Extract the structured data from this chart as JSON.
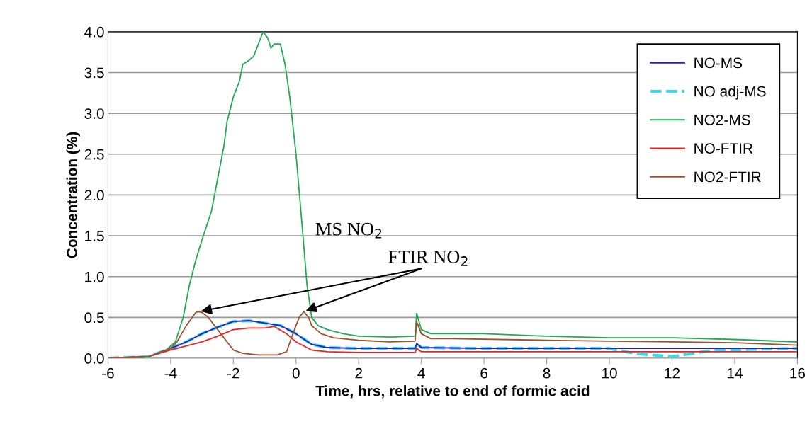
{
  "chart_data": {
    "type": "line",
    "xlabel": "Time, hrs, relative to end of formic acid",
    "ylabel": "Concentration (%)",
    "xlim": [
      -6,
      16
    ],
    "xticks": [
      -6,
      -4,
      -2,
      0,
      2,
      4,
      6,
      8,
      10,
      12,
      14,
      16
    ],
    "ylim": [
      0,
      4
    ],
    "yticks": [
      {
        "value": 0,
        "label": "0.0"
      },
      {
        "value": 0.5,
        "label": "0.5"
      },
      {
        "value": 1,
        "label": "1.0"
      },
      {
        "value": 1.5,
        "label": "1.5"
      },
      {
        "value": 2,
        "label": "2.0"
      },
      {
        "value": 2.5,
        "label": "2.5"
      },
      {
        "value": 3,
        "label": "3.0"
      },
      {
        "value": 3.5,
        "label": "3.5"
      },
      {
        "value": 4,
        "label": "4.0"
      }
    ],
    "grid": "y",
    "legend": "top right",
    "marker": "none",
    "annotations": [
      "MS NO$_{2}$",
      {
        "text": "FTIR NO$_{2}$",
        "x": -3.1,
        "y": 0.57
      }
    ],
    "series": [
      {
        "name": "NO-MS",
        "color": "#2020c0",
        "line_style": "solid",
        "x": [
          -6,
          -4.7,
          -4,
          -3.5,
          -3,
          -2.5,
          -2,
          -1.5,
          -1,
          -0.5,
          0,
          0.5,
          1,
          2,
          3.8,
          3.85,
          4,
          6,
          10,
          12,
          16
        ],
        "values": [
          0,
          0.02,
          0.12,
          0.2,
          0.3,
          0.38,
          0.45,
          0.46,
          0.43,
          0.4,
          0.3,
          0.17,
          0.13,
          0.12,
          0.12,
          0.18,
          0.13,
          0.12,
          0.12,
          0.12,
          0.12
        ]
      },
      {
        "name": "NO adj-MS",
        "color": "#33ddee",
        "line_style": "dashed",
        "x": [
          -6,
          -4.7,
          -4,
          -3.5,
          -3,
          -2.5,
          -2,
          -1.5,
          -1,
          -0.5,
          0,
          0.5,
          1,
          2,
          3.8,
          3.85,
          4,
          6,
          10,
          10.5,
          11,
          12,
          12.5,
          13,
          13.5,
          16
        ],
        "values": [
          0,
          0.02,
          0.12,
          0.2,
          0.3,
          0.38,
          0.45,
          0.46,
          0.43,
          0.4,
          0.3,
          0.17,
          0.13,
          0.12,
          0.12,
          0.18,
          0.13,
          0.12,
          0.12,
          0.08,
          0.05,
          0.02,
          0.05,
          0.08,
          0.1,
          0.12
        ]
      },
      {
        "name": "NO2-MS",
        "color": "#22aa55",
        "line_style": "solid",
        "x": [
          -6,
          -5,
          -4.7,
          -4.2,
          -4,
          -3.85,
          -3.6,
          -3.4,
          -3.2,
          -3,
          -2.7,
          -2.5,
          -2.3,
          -2.2,
          -2,
          -1.8,
          -1.7,
          -1.5,
          -1.35,
          -1.2,
          -1.05,
          -0.9,
          -0.8,
          -0.7,
          -0.5,
          -0.35,
          -0.2,
          0,
          0.2,
          0.35,
          0.5,
          0.7,
          1,
          1.5,
          2,
          3,
          3.8,
          3.85,
          4,
          4.3,
          5,
          6,
          8,
          10,
          12,
          14,
          16
        ],
        "values": [
          0,
          0,
          0.02,
          0.08,
          0.15,
          0.2,
          0.5,
          0.9,
          1.2,
          1.45,
          1.8,
          2.2,
          2.6,
          2.9,
          3.2,
          3.4,
          3.6,
          3.65,
          3.7,
          3.85,
          4.0,
          3.92,
          3.8,
          3.85,
          3.85,
          3.6,
          3.2,
          2.5,
          1.6,
          0.9,
          0.5,
          0.4,
          0.35,
          0.3,
          0.27,
          0.26,
          0.27,
          0.55,
          0.35,
          0.3,
          0.3,
          0.3,
          0.27,
          0.25,
          0.25,
          0.23,
          0.2
        ]
      },
      {
        "name": "NO-FTIR",
        "color": "#ee2222",
        "line_style": "solid",
        "x": [
          -6,
          -4.7,
          -4,
          -3.5,
          -3,
          -2.5,
          -2,
          -1.5,
          -1,
          -0.7,
          -0.3,
          0,
          0.5,
          1,
          2,
          3.8,
          3.85,
          4,
          8,
          16
        ],
        "values": [
          0,
          0.02,
          0.1,
          0.15,
          0.2,
          0.27,
          0.35,
          0.37,
          0.37,
          0.39,
          0.3,
          0.2,
          0.1,
          0.08,
          0.07,
          0.07,
          0.12,
          0.08,
          0.08,
          0.08
        ]
      },
      {
        "name": "NO2-FTIR",
        "color": "#a0522d",
        "line_style": "solid",
        "x": [
          -6,
          -4.7,
          -4,
          -3.8,
          -3.5,
          -3.2,
          -3.1,
          -3,
          -2.8,
          -2.5,
          -2.2,
          -2,
          -1.7,
          -1.2,
          -0.6,
          -0.3,
          -0.1,
          0.1,
          0.25,
          0.4,
          0.5,
          0.8,
          1.2,
          2,
          3,
          3.8,
          3.85,
          4,
          4.3,
          5,
          8,
          10,
          12,
          14,
          16
        ],
        "values": [
          0,
          0.02,
          0.12,
          0.2,
          0.4,
          0.56,
          0.57,
          0.56,
          0.5,
          0.35,
          0.2,
          0.1,
          0.06,
          0.04,
          0.04,
          0.08,
          0.3,
          0.5,
          0.57,
          0.5,
          0.4,
          0.3,
          0.25,
          0.22,
          0.2,
          0.21,
          0.45,
          0.3,
          0.24,
          0.24,
          0.22,
          0.21,
          0.2,
          0.19,
          0.16
        ]
      }
    ]
  }
}
